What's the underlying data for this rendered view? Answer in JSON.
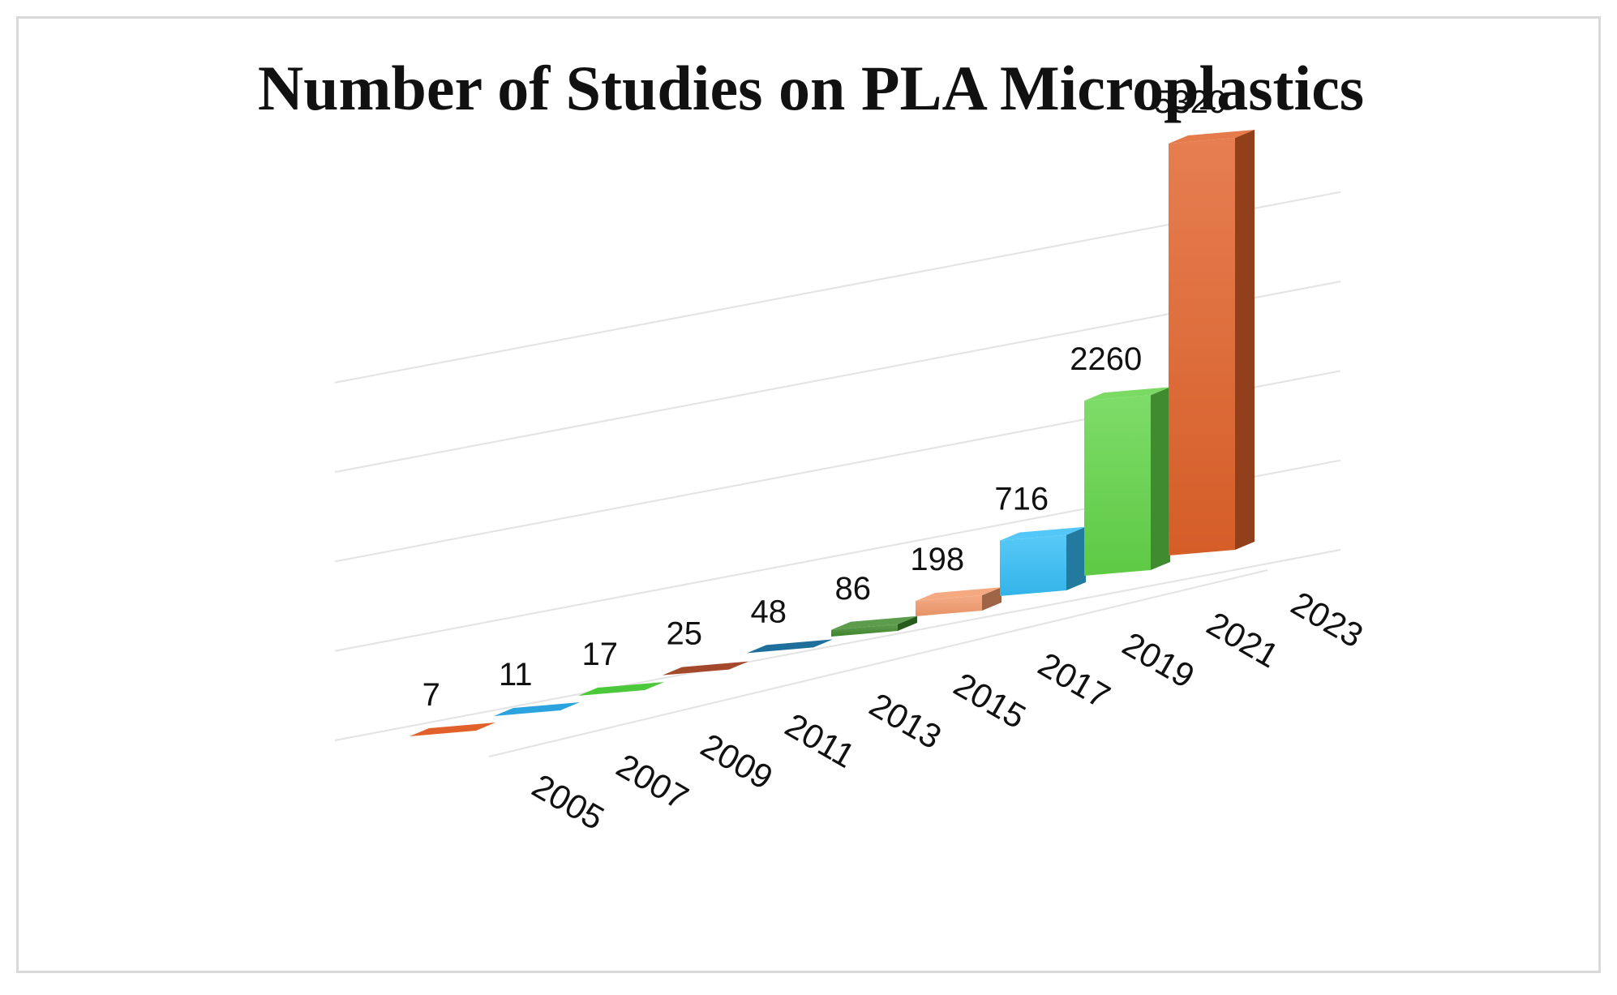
{
  "chart_data": {
    "type": "bar",
    "title": "Number of Studies on PLA Microplastics",
    "categories": [
      "2005",
      "2007",
      "2009",
      "2011",
      "2013",
      "2015",
      "2017",
      "2019",
      "2021",
      "2023"
    ],
    "values": [
      7,
      11,
      17,
      25,
      48,
      86,
      198,
      716,
      2260,
      5320
    ],
    "value_labels": [
      "7",
      "11",
      "17",
      "25",
      "48",
      "86",
      "198",
      "716",
      "2260",
      "5320"
    ],
    "xlabel": "",
    "ylabel": "",
    "ylim": [
      0,
      6000
    ],
    "gridlines": [
      0,
      1500,
      3000,
      4500,
      6000
    ],
    "grid": true,
    "legend": "none",
    "style": "3d-column",
    "series_colors": [
      "#e0622a",
      "#2aa3de",
      "#4cc93a",
      "#a3482a",
      "#1f6f9c",
      "#3f8a2c",
      "#f39a6b",
      "#35bdf5",
      "#62d448",
      "#e0622a"
    ]
  }
}
